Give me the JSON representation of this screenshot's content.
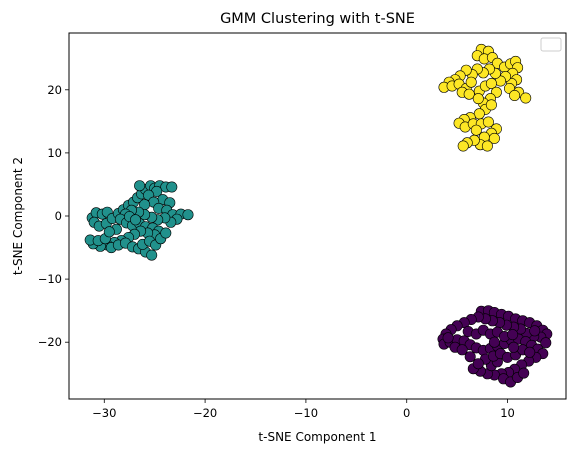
{
  "chart_data": {
    "type": "scatter",
    "title": "GMM Clustering with t-SNE",
    "xlabel": "t-SNE Component 1",
    "ylabel": "t-SNE Component 2",
    "xlim": [
      -33.5,
      15.8
    ],
    "ylim": [
      -29.0,
      29.0
    ],
    "xticks": [
      -30,
      -20,
      -10,
      0,
      10
    ],
    "yticks": [
      -20,
      -10,
      0,
      10,
      20
    ],
    "xtick_labels": [
      "−30",
      "−20",
      "−10",
      "0",
      "10"
    ],
    "ytick_labels": [
      "−20",
      "−10",
      "0",
      "10",
      "20"
    ],
    "grid": false,
    "legend": {
      "position": "top-right",
      "entries": []
    },
    "marker_edge_color": "#000000",
    "series": [
      {
        "color": "#21918c",
        "points": [
          [
            -31.2,
            -0.3
          ],
          [
            -30.8,
            0.5
          ],
          [
            -30.2,
            0.3
          ],
          [
            -29.7,
            0.6
          ],
          [
            -31.0,
            -1.0
          ],
          [
            -30.5,
            -1.6
          ],
          [
            -29.8,
            -1.2
          ],
          [
            -29.2,
            -0.4
          ],
          [
            -28.6,
            0.4
          ],
          [
            -28.1,
            1.0
          ],
          [
            -27.6,
            1.7
          ],
          [
            -27.1,
            2.2
          ],
          [
            -26.7,
            2.9
          ],
          [
            -26.3,
            3.5
          ],
          [
            -25.9,
            4.2
          ],
          [
            -26.5,
            4.8
          ],
          [
            -25.4,
            4.8
          ],
          [
            -25.0,
            4.4
          ],
          [
            -24.5,
            4.8
          ],
          [
            -23.9,
            4.6
          ],
          [
            -23.3,
            4.6
          ],
          [
            -24.8,
            3.9
          ],
          [
            -25.6,
            3.3
          ],
          [
            -24.2,
            2.6
          ],
          [
            -23.5,
            2.1
          ],
          [
            -25.1,
            2.2
          ],
          [
            -26.0,
            1.8
          ],
          [
            -24.6,
            1.2
          ],
          [
            -23.8,
            0.9
          ],
          [
            -23.2,
            0.2
          ],
          [
            -22.4,
            0.3
          ],
          [
            -21.7,
            0.2
          ],
          [
            -22.8,
            -0.5
          ],
          [
            -23.4,
            -1.0
          ],
          [
            -24.0,
            -0.3
          ],
          [
            -24.7,
            -0.6
          ],
          [
            -25.3,
            -0.2
          ],
          [
            -26.0,
            0.2
          ],
          [
            -26.6,
            0.6
          ],
          [
            -27.3,
            0.9
          ],
          [
            -27.9,
            0.3
          ],
          [
            -28.4,
            -0.5
          ],
          [
            -27.8,
            -1.1
          ],
          [
            -27.2,
            -1.5
          ],
          [
            -26.5,
            -1.2
          ],
          [
            -25.9,
            -1.7
          ],
          [
            -25.2,
            -1.9
          ],
          [
            -24.6,
            -2.4
          ],
          [
            -25.0,
            -3.0
          ],
          [
            -25.7,
            -2.7
          ],
          [
            -26.4,
            -2.4
          ],
          [
            -27.0,
            -2.9
          ],
          [
            -27.6,
            -3.4
          ],
          [
            -28.3,
            -3.9
          ],
          [
            -29.0,
            -4.2
          ],
          [
            -29.7,
            -4.6
          ],
          [
            -30.4,
            -4.8
          ],
          [
            -31.1,
            -4.4
          ],
          [
            -31.4,
            -3.8
          ],
          [
            -30.6,
            -3.9
          ],
          [
            -29.9,
            -3.6
          ],
          [
            -29.3,
            -5.0
          ],
          [
            -28.6,
            -4.6
          ],
          [
            -27.9,
            -4.3
          ],
          [
            -27.2,
            -4.9
          ],
          [
            -26.6,
            -5.2
          ],
          [
            -25.9,
            -5.7
          ],
          [
            -25.3,
            -6.2
          ],
          [
            -26.2,
            -4.5
          ],
          [
            -25.5,
            -4.0
          ],
          [
            -24.9,
            -4.6
          ],
          [
            -24.4,
            -3.6
          ],
          [
            -23.9,
            -2.7
          ],
          [
            -28.8,
            -2.1
          ],
          [
            -29.5,
            -2.5
          ],
          [
            -27.5,
            -0.1
          ],
          [
            -26.9,
            -0.6
          ]
        ]
      },
      {
        "color": "#fde725",
        "points": [
          [
            7.4,
            26.4
          ],
          [
            8.1,
            26.1
          ],
          [
            7.0,
            25.4
          ],
          [
            7.7,
            24.9
          ],
          [
            8.5,
            25.1
          ],
          [
            9.0,
            24.2
          ],
          [
            9.7,
            23.6
          ],
          [
            10.3,
            24.1
          ],
          [
            10.8,
            24.5
          ],
          [
            11.0,
            23.5
          ],
          [
            10.5,
            22.6
          ],
          [
            10.9,
            21.6
          ],
          [
            10.4,
            21.0
          ],
          [
            10.2,
            20.2
          ],
          [
            11.1,
            19.6
          ],
          [
            11.8,
            18.7
          ],
          [
            10.7,
            19.1
          ],
          [
            9.8,
            22.1
          ],
          [
            9.3,
            21.4
          ],
          [
            8.8,
            22.6
          ],
          [
            8.2,
            23.3
          ],
          [
            7.6,
            22.7
          ],
          [
            7.0,
            23.3
          ],
          [
            6.5,
            22.4
          ],
          [
            5.9,
            23.1
          ],
          [
            5.3,
            22.2
          ],
          [
            4.8,
            21.6
          ],
          [
            4.2,
            21.2
          ],
          [
            3.7,
            20.4
          ],
          [
            4.5,
            20.6
          ],
          [
            5.2,
            20.9
          ],
          [
            5.9,
            20.2
          ],
          [
            6.4,
            21.2
          ],
          [
            5.5,
            19.6
          ],
          [
            6.2,
            19.3
          ],
          [
            7.2,
            19.8
          ],
          [
            7.8,
            20.6
          ],
          [
            8.4,
            21.0
          ],
          [
            8.9,
            19.6
          ],
          [
            8.3,
            18.6
          ],
          [
            7.6,
            17.9
          ],
          [
            7.1,
            18.6
          ],
          [
            7.8,
            16.9
          ],
          [
            8.4,
            17.6
          ],
          [
            7.2,
            16.2
          ],
          [
            6.3,
            15.6
          ],
          [
            5.7,
            15.3
          ],
          [
            5.2,
            14.7
          ],
          [
            5.8,
            14.1
          ],
          [
            6.6,
            14.6
          ],
          [
            7.4,
            14.6
          ],
          [
            8.1,
            14.9
          ],
          [
            8.9,
            13.8
          ],
          [
            8.4,
            13.1
          ],
          [
            7.7,
            12.5
          ],
          [
            7.3,
            11.3
          ],
          [
            8.0,
            11.1
          ],
          [
            6.7,
            12.0
          ],
          [
            6.0,
            11.6
          ],
          [
            5.6,
            11.1
          ],
          [
            8.7,
            12.3
          ],
          [
            6.9,
            13.6
          ]
        ]
      },
      {
        "color": "#440154",
        "points": [
          [
            7.4,
            -15.1
          ],
          [
            8.1,
            -15.0
          ],
          [
            8.7,
            -15.3
          ],
          [
            9.4,
            -15.6
          ],
          [
            10.1,
            -15.9
          ],
          [
            10.8,
            -16.3
          ],
          [
            11.5,
            -16.6
          ],
          [
            12.2,
            -16.9
          ],
          [
            12.9,
            -17.4
          ],
          [
            13.5,
            -18.1
          ],
          [
            13.9,
            -18.7
          ],
          [
            13.3,
            -19.2
          ],
          [
            12.6,
            -19.1
          ],
          [
            11.9,
            -18.6
          ],
          [
            11.3,
            -17.9
          ],
          [
            10.6,
            -17.6
          ],
          [
            9.9,
            -17.3
          ],
          [
            9.2,
            -16.9
          ],
          [
            8.5,
            -16.6
          ],
          [
            7.8,
            -16.3
          ],
          [
            7.1,
            -16.0
          ],
          [
            6.4,
            -16.4
          ],
          [
            5.7,
            -16.9
          ],
          [
            5.0,
            -17.4
          ],
          [
            4.4,
            -18.0
          ],
          [
            3.9,
            -18.7
          ],
          [
            3.6,
            -19.5
          ],
          [
            3.7,
            -20.3
          ],
          [
            4.3,
            -20.0
          ],
          [
            5.0,
            -19.6
          ],
          [
            5.7,
            -19.8
          ],
          [
            6.3,
            -20.4
          ],
          [
            6.9,
            -20.9
          ],
          [
            7.6,
            -21.3
          ],
          [
            8.3,
            -21.0
          ],
          [
            9.0,
            -20.6
          ],
          [
            9.7,
            -20.2
          ],
          [
            10.4,
            -19.7
          ],
          [
            11.1,
            -19.5
          ],
          [
            11.8,
            -19.9
          ],
          [
            12.4,
            -20.5
          ],
          [
            13.0,
            -21.1
          ],
          [
            13.5,
            -21.8
          ],
          [
            12.8,
            -22.4
          ],
          [
            12.1,
            -23.0
          ],
          [
            11.4,
            -23.6
          ],
          [
            10.7,
            -24.3
          ],
          [
            10.1,
            -24.8
          ],
          [
            9.4,
            -25.0
          ],
          [
            8.7,
            -25.2
          ],
          [
            8.0,
            -25.0
          ],
          [
            7.3,
            -24.6
          ],
          [
            6.6,
            -24.2
          ],
          [
            9.6,
            -25.8
          ],
          [
            10.3,
            -26.3
          ],
          [
            11.0,
            -25.6
          ],
          [
            11.6,
            -24.9
          ],
          [
            8.4,
            -23.7
          ],
          [
            9.0,
            -23.1
          ],
          [
            7.8,
            -22.7
          ],
          [
            8.6,
            -22.2
          ],
          [
            9.3,
            -21.8
          ],
          [
            10.0,
            -22.4
          ],
          [
            10.8,
            -22.0
          ],
          [
            11.5,
            -21.2
          ],
          [
            12.2,
            -21.6
          ],
          [
            4.8,
            -20.8
          ],
          [
            5.5,
            -21.2
          ],
          [
            4.1,
            -19.3
          ],
          [
            6.1,
            -18.3
          ],
          [
            6.9,
            -18.7
          ],
          [
            7.6,
            -18.1
          ],
          [
            8.3,
            -18.7
          ],
          [
            9.0,
            -18.4
          ],
          [
            9.7,
            -19.1
          ],
          [
            10.5,
            -18.8
          ],
          [
            12.7,
            -18.2
          ],
          [
            13.8,
            -20.1
          ],
          [
            8.7,
            -20.0
          ],
          [
            6.3,
            -22.3
          ],
          [
            7.1,
            -23.4
          ],
          [
            10.6,
            -20.8
          ]
        ]
      }
    ]
  }
}
